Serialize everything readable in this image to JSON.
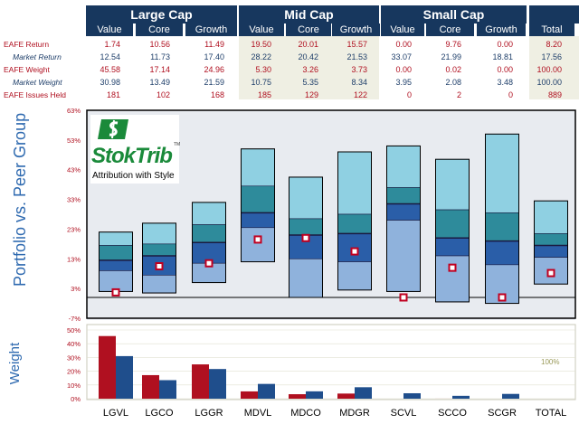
{
  "header": {
    "groups": [
      "Large Cap",
      "Mid Cap",
      "Small Cap"
    ],
    "columns": [
      "Value",
      "Core",
      "Growth",
      "Value",
      "Core",
      "Growth",
      "Value",
      "Core",
      "Growth",
      "Total"
    ],
    "rows": [
      {
        "label": "EAFE Return",
        "indent": false,
        "values": [
          "1.74",
          "10.56",
          "11.49",
          "19.50",
          "20.01",
          "15.57",
          "0.00",
          "9.76",
          "0.00",
          "8.20"
        ]
      },
      {
        "label": "Market Return",
        "indent": true,
        "values": [
          "12.54",
          "11.73",
          "17.40",
          "28.22",
          "20.42",
          "21.53",
          "33.07",
          "21.99",
          "18.81",
          "17.56"
        ]
      },
      {
        "label": "EAFE Weight",
        "indent": false,
        "values": [
          "45.58",
          "17.14",
          "24.96",
          "5.30",
          "3.26",
          "3.73",
          "0.00",
          "0.02",
          "0.00",
          "100.00"
        ]
      },
      {
        "label": "Market Weight",
        "indent": true,
        "values": [
          "30.98",
          "13.49",
          "21.59",
          "10.75",
          "5.35",
          "8.34",
          "3.95",
          "2.08",
          "3.48",
          "100.00"
        ]
      },
      {
        "label": "EAFE Issues Held",
        "indent": false,
        "values": [
          "181",
          "102",
          "168",
          "185",
          "129",
          "122",
          "0",
          "2",
          "0",
          "889"
        ]
      }
    ]
  },
  "logo": {
    "name": "StokTrib",
    "tm": "TM",
    "tagline": "Attribution with Style"
  },
  "side_labels": {
    "main": "Portfolio vs. Peer Group",
    "weight": "Weight"
  },
  "weight_total_label": "100%",
  "colors": {
    "navy": "#17375e",
    "red": "#b01020",
    "blue": "#1f4e8c"
  },
  "chart_data": [
    {
      "type": "box",
      "description_of_type": "floating percentile bars with portfolio marker",
      "categories": [
        "LGVL",
        "LGCO",
        "LGGR",
        "MDVL",
        "MDCO",
        "MDGR",
        "SCVL",
        "SCCO",
        "SCGR",
        "TOTAL"
      ],
      "y_ticks": [
        "63%",
        "53%",
        "43%",
        "33%",
        "23%",
        "13%",
        "3%",
        "-7%"
      ],
      "ylim": [
        -7,
        63
      ],
      "boxes": [
        {
          "p95": 22,
          "p75": 17.5,
          "p50": 12.5,
          "p25": 9,
          "p5": 2,
          "portfolio": 1.7
        },
        {
          "p95": 25,
          "p75": 18,
          "p50": 14,
          "p25": 7.5,
          "p5": 1.5,
          "portfolio": 10.5
        },
        {
          "p95": 32,
          "p75": 24.5,
          "p50": 18.5,
          "p25": 11.5,
          "p5": 5,
          "portfolio": 11.5
        },
        {
          "p95": 50,
          "p75": 37.5,
          "p50": 28.5,
          "p25": 23.5,
          "p5": 12,
          "portfolio": 19.5
        },
        {
          "p95": 40.5,
          "p75": 26.5,
          "p50": 21,
          "p25": 13,
          "p5": 0,
          "portfolio": 20
        },
        {
          "p95": 49,
          "p75": 28,
          "p50": 21.5,
          "p25": 12,
          "p5": 2.5,
          "portfolio": 15.5
        },
        {
          "p95": 51,
          "p75": 37,
          "p50": 31.5,
          "p25": 26,
          "p5": 2,
          "portfolio": 0
        },
        {
          "p95": 46.5,
          "p75": 29.5,
          "p50": 20,
          "p25": 14,
          "p5": -1.5,
          "portfolio": 10
        },
        {
          "p95": 55,
          "p75": 28.5,
          "p50": 19,
          "p25": 11,
          "p5": -2,
          "portfolio": 0
        },
        {
          "p95": 32.5,
          "p75": 21.5,
          "p50": 17.5,
          "p25": 13.5,
          "p5": 4.5,
          "portfolio": 8.2
        }
      ]
    },
    {
      "type": "bar",
      "categories": [
        "LGVL",
        "LGCO",
        "LGGR",
        "MDVL",
        "MDCO",
        "MDGR",
        "SCVL",
        "SCCO",
        "SCGR",
        "TOTAL"
      ],
      "y_ticks": [
        "50%",
        "40%",
        "30%",
        "20%",
        "10%",
        "0%"
      ],
      "ylim": [
        0,
        50
      ],
      "series": [
        {
          "values": [
            45.58,
            17.14,
            24.96,
            5.3,
            3.26,
            3.73,
            0.0,
            0.02,
            0.0,
            null
          ]
        },
        {
          "values": [
            30.98,
            13.49,
            21.59,
            10.75,
            5.35,
            8.34,
            3.95,
            2.08,
            3.48,
            null
          ]
        }
      ]
    }
  ]
}
